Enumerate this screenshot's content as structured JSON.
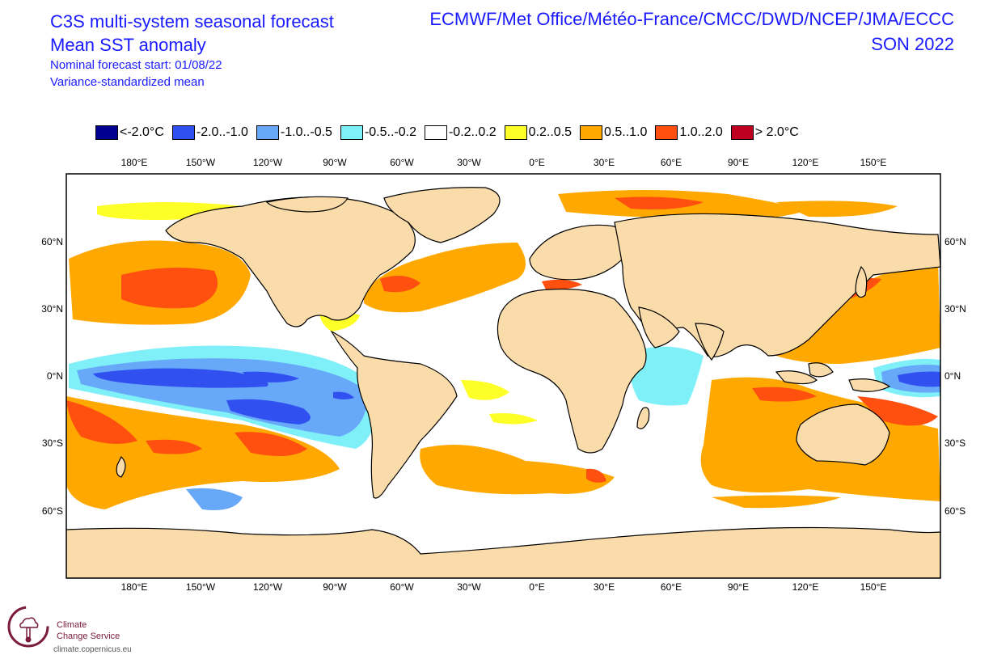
{
  "title": {
    "line1": "C3S multi-system seasonal forecast",
    "line2": "Mean SST anomaly",
    "line3": "Nominal forecast start: 01/08/22",
    "line4": "Variance-standardized mean"
  },
  "header_right": {
    "systems": "ECMWF/Met Office/Météo-France/CMCC/DWD/NCEP/JMA/ECCC",
    "season": "SON 2022"
  },
  "legend": [
    {
      "label": "<-2.0°C",
      "color": "#000090"
    },
    {
      "label": "-2.0..-1.0",
      "color": "#3050f0"
    },
    {
      "label": "-1.0..-0.5",
      "color": "#68a8f8"
    },
    {
      "label": "-0.5..-0.2",
      "color": "#80f0f8"
    },
    {
      "label": "-0.2..0.2",
      "color": "#ffffff"
    },
    {
      "label": "0.2..0.5",
      "color": "#ffff28"
    },
    {
      "label": "0.5..1.0",
      "color": "#ffa800"
    },
    {
      "label": "1.0..2.0",
      "color": "#ff5010"
    },
    {
      "label": "> 2.0°C",
      "color": "#c00020"
    }
  ],
  "map": {
    "land_color": "#fadcaa",
    "lon_labels": [
      "180°E",
      "150°W",
      "120°W",
      "90°W",
      "60°W",
      "30°W",
      "0°E",
      "30°E",
      "60°E",
      "90°E",
      "120°E",
      "150°E"
    ],
    "lat_labels": [
      "60°N",
      "30°N",
      "0°N",
      "30°S",
      "60°S"
    ]
  },
  "logo": {
    "name_line1": "Climate",
    "name_line2": "Change Service",
    "url": "climate.copernicus.eu"
  }
}
